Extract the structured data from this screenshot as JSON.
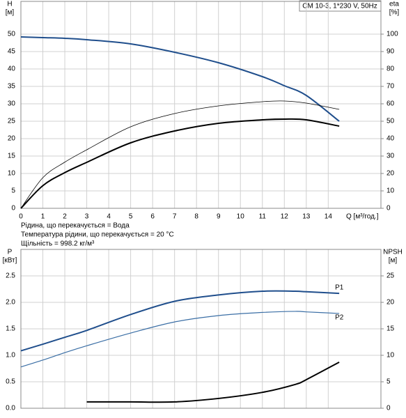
{
  "chart_data": [
    {
      "type": "line",
      "label_box": "CM 10-3, 1*230 V, 50Hz",
      "y_label": "H",
      "y_unit": "[м]",
      "y2_label": "eta",
      "y2_unit": "[%]",
      "x_label": "Q [м³/год.]",
      "x": [
        0,
        1,
        2,
        3,
        5,
        7,
        9,
        11,
        12,
        13,
        14.5
      ],
      "series": [
        {
          "color": "#1f4e8c",
          "values": [
            49.2,
            49.0,
            48.8,
            48.4,
            47.2,
            44.8,
            41.8,
            37.8,
            35.2,
            32.4,
            25.0
          ]
        },
        {
          "color": "#000000",
          "axis": "y2",
          "values": [
            0,
            17.6,
            26.5,
            33.6,
            46.8,
            54.4,
            58.8,
            61.2,
            61.6,
            60.4,
            56.8
          ]
        },
        {
          "color": "#000000",
          "axis": "y2",
          "values": [
            0,
            13.0,
            20.5,
            26.4,
            37.6,
            44.4,
            48.8,
            50.8,
            51.2,
            50.8,
            47.2
          ]
        }
      ],
      "xlim": [
        0,
        16.4
      ],
      "xticks": [
        0,
        1,
        2,
        3,
        4,
        5,
        6,
        7,
        8,
        9,
        10,
        11,
        12,
        13,
        14
      ],
      "ylim": [
        0,
        59.4
      ],
      "yticks": [
        0,
        5,
        10,
        15,
        20,
        25,
        30,
        35,
        40,
        45,
        50
      ],
      "y2lim": [
        0,
        118.8
      ],
      "y2ticks": [
        0,
        10,
        20,
        30,
        40,
        50,
        60,
        70,
        80,
        90,
        100
      ],
      "grid": true,
      "notes": [
        "Рідина, що перекачується = Вода",
        "Температура рідини, що перекачується = 20 °C",
        "Щільність = 998.2 кг/м³"
      ]
    },
    {
      "type": "line",
      "y_label": "P",
      "y_unit": "[кВт]",
      "y2_label": "NPSH",
      "y2_unit": "[м]",
      "x": [
        0,
        1,
        2,
        3,
        5,
        7,
        9,
        11,
        12.5,
        13,
        14.5
      ],
      "series": [
        {
          "name": "P1",
          "color": "#1f4e8c",
          "values": [
            1.085,
            1.21,
            1.34,
            1.47,
            1.77,
            2.02,
            2.14,
            2.21,
            2.21,
            2.2,
            2.17
          ]
        },
        {
          "name": "P2",
          "color": "#3a6ea5",
          "values": [
            0.78,
            0.91,
            1.05,
            1.18,
            1.42,
            1.63,
            1.75,
            1.81,
            1.83,
            1.82,
            1.79
          ]
        },
        {
          "color": "#000000",
          "axis": "y2",
          "values": [
            null,
            null,
            null,
            1.2,
            1.2,
            1.2,
            1.85,
            3.0,
            4.5,
            5.4,
            8.7
          ]
        }
      ],
      "xlim": [
        0,
        16.4
      ],
      "ylim": [
        0,
        3.0
      ],
      "yticks": [
        {
          "value": 0,
          "label": "0.0"
        },
        0.5,
        {
          "value": 1,
          "label": "1.0"
        },
        1.5,
        {
          "value": 2,
          "label": "2.0"
        },
        2.5
      ],
      "y2lim": [
        0,
        30
      ],
      "y2ticks": [
        0,
        5,
        10,
        15,
        20,
        25
      ],
      "grid": true
    }
  ]
}
